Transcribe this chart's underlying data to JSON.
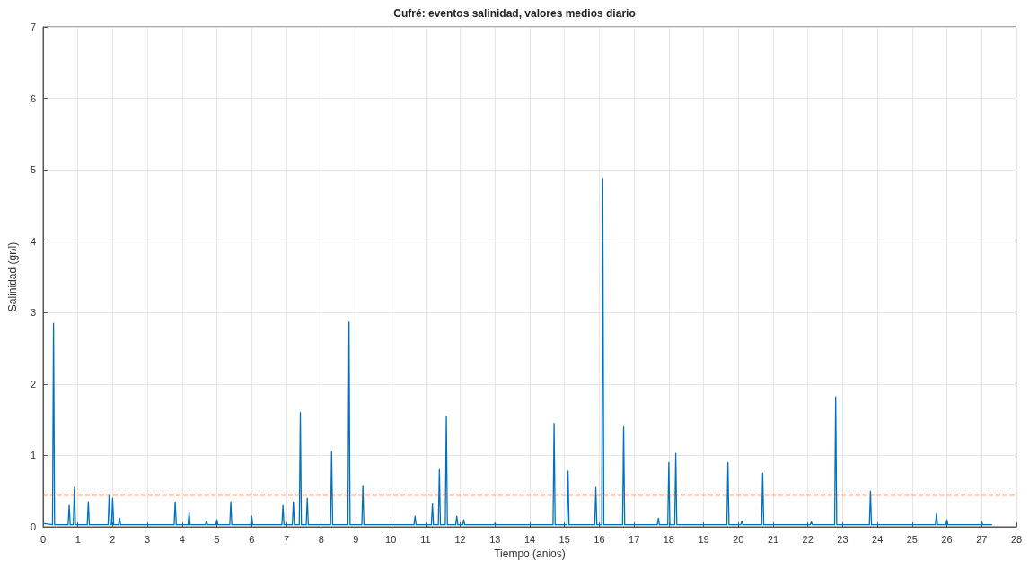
{
  "chart_data": {
    "type": "line",
    "title": "Cufré: eventos salinidad, valores medios diario",
    "xlabel": "Tiempo (anios)",
    "ylabel": "Salinidad (gr/l)",
    "x": [
      0,
      0.27,
      0.3,
      0.33,
      0.72,
      0.75,
      0.78,
      0.87,
      0.9,
      0.93,
      1.27,
      1.3,
      1.33,
      1.87,
      1.9,
      1.93,
      1.97,
      2.0,
      2.03,
      2.17,
      2.2,
      2.23,
      3.77,
      3.8,
      3.83,
      4.17,
      4.2,
      4.23,
      4.67,
      4.7,
      4.73,
      4.97,
      5.0,
      5.03,
      5.37,
      5.4,
      5.43,
      5.97,
      6.0,
      6.03,
      6.87,
      6.9,
      6.93,
      7.17,
      7.2,
      7.23,
      7.37,
      7.4,
      7.43,
      7.57,
      7.6,
      7.63,
      8.27,
      8.3,
      8.33,
      8.77,
      8.8,
      8.83,
      9.17,
      9.2,
      9.23,
      10.67,
      10.7,
      10.73,
      11.17,
      11.2,
      11.23,
      11.37,
      11.4,
      11.43,
      11.57,
      11.6,
      11.63,
      11.87,
      11.9,
      11.93,
      12.07,
      12.1,
      12.13,
      12.97,
      13.0,
      13.03,
      14.67,
      14.7,
      14.73,
      15.07,
      15.1,
      15.13,
      15.87,
      15.9,
      15.93,
      16.07,
      16.1,
      16.13,
      16.67,
      16.7,
      16.73,
      17.67,
      17.7,
      17.73,
      17.97,
      18.0,
      18.03,
      18.17,
      18.2,
      18.23,
      19.67,
      19.7,
      19.73,
      20.07,
      20.1,
      20.13,
      20.67,
      20.7,
      20.73,
      22.07,
      22.1,
      22.13,
      22.77,
      22.8,
      22.83,
      23.77,
      23.8,
      23.83,
      25.67,
      25.7,
      25.73,
      25.97,
      26.0,
      26.03,
      26.97,
      27.0,
      27.03,
      27.3
    ],
    "series": [
      {
        "color": "#0072bd",
        "values": [
          0.05,
          0.03,
          2.85,
          0.03,
          0.03,
          0.3,
          0.03,
          0.03,
          0.55,
          0.03,
          0.03,
          0.35,
          0.03,
          0.03,
          0.45,
          0.03,
          0.03,
          0.4,
          0.03,
          0.03,
          0.12,
          0.03,
          0.03,
          0.35,
          0.03,
          0.03,
          0.2,
          0.03,
          0.03,
          0.08,
          0.03,
          0.03,
          0.1,
          0.03,
          0.03,
          0.35,
          0.03,
          0.03,
          0.15,
          0.03,
          0.03,
          0.3,
          0.03,
          0.03,
          0.35,
          0.03,
          0.03,
          1.6,
          0.03,
          0.03,
          0.4,
          0.03,
          0.03,
          1.05,
          0.03,
          0.03,
          2.87,
          0.03,
          0.03,
          0.58,
          0.03,
          0.03,
          0.15,
          0.03,
          0.03,
          0.32,
          0.03,
          0.03,
          0.8,
          0.03,
          0.03,
          1.55,
          0.03,
          0.03,
          0.15,
          0.03,
          0.03,
          0.1,
          0.03,
          0.03,
          0.05,
          0.03,
          0.03,
          1.45,
          0.03,
          0.03,
          0.78,
          0.03,
          0.03,
          0.55,
          0.03,
          0.03,
          4.88,
          0.03,
          0.03,
          1.4,
          0.03,
          0.03,
          0.12,
          0.03,
          0.03,
          0.9,
          0.03,
          0.03,
          1.03,
          0.03,
          0.03,
          0.9,
          0.03,
          0.03,
          0.08,
          0.03,
          0.03,
          0.75,
          0.03,
          0.03,
          0.07,
          0.03,
          0.03,
          1.82,
          0.03,
          0.03,
          0.5,
          0.03,
          0.03,
          0.18,
          0.03,
          0.03,
          0.1,
          0.03,
          0.03,
          0.07,
          0.03,
          0.03
        ]
      }
    ],
    "ref_lines": [
      {
        "axis": "y",
        "value": 0.45,
        "color": "#d95319",
        "line_style": "dashed"
      }
    ],
    "xlim": [
      0,
      28
    ],
    "xticks": [
      0,
      1,
      2,
      3,
      4,
      5,
      6,
      7,
      8,
      9,
      10,
      11,
      12,
      13,
      14,
      15,
      16,
      17,
      18,
      19,
      20,
      21,
      22,
      23,
      24,
      25,
      26,
      27,
      28
    ],
    "ylim": [
      0,
      7
    ],
    "yticks": [
      0,
      1,
      2,
      3,
      4,
      5,
      6,
      7
    ],
    "grid": true,
    "marker": "none",
    "line_style": "solid"
  }
}
